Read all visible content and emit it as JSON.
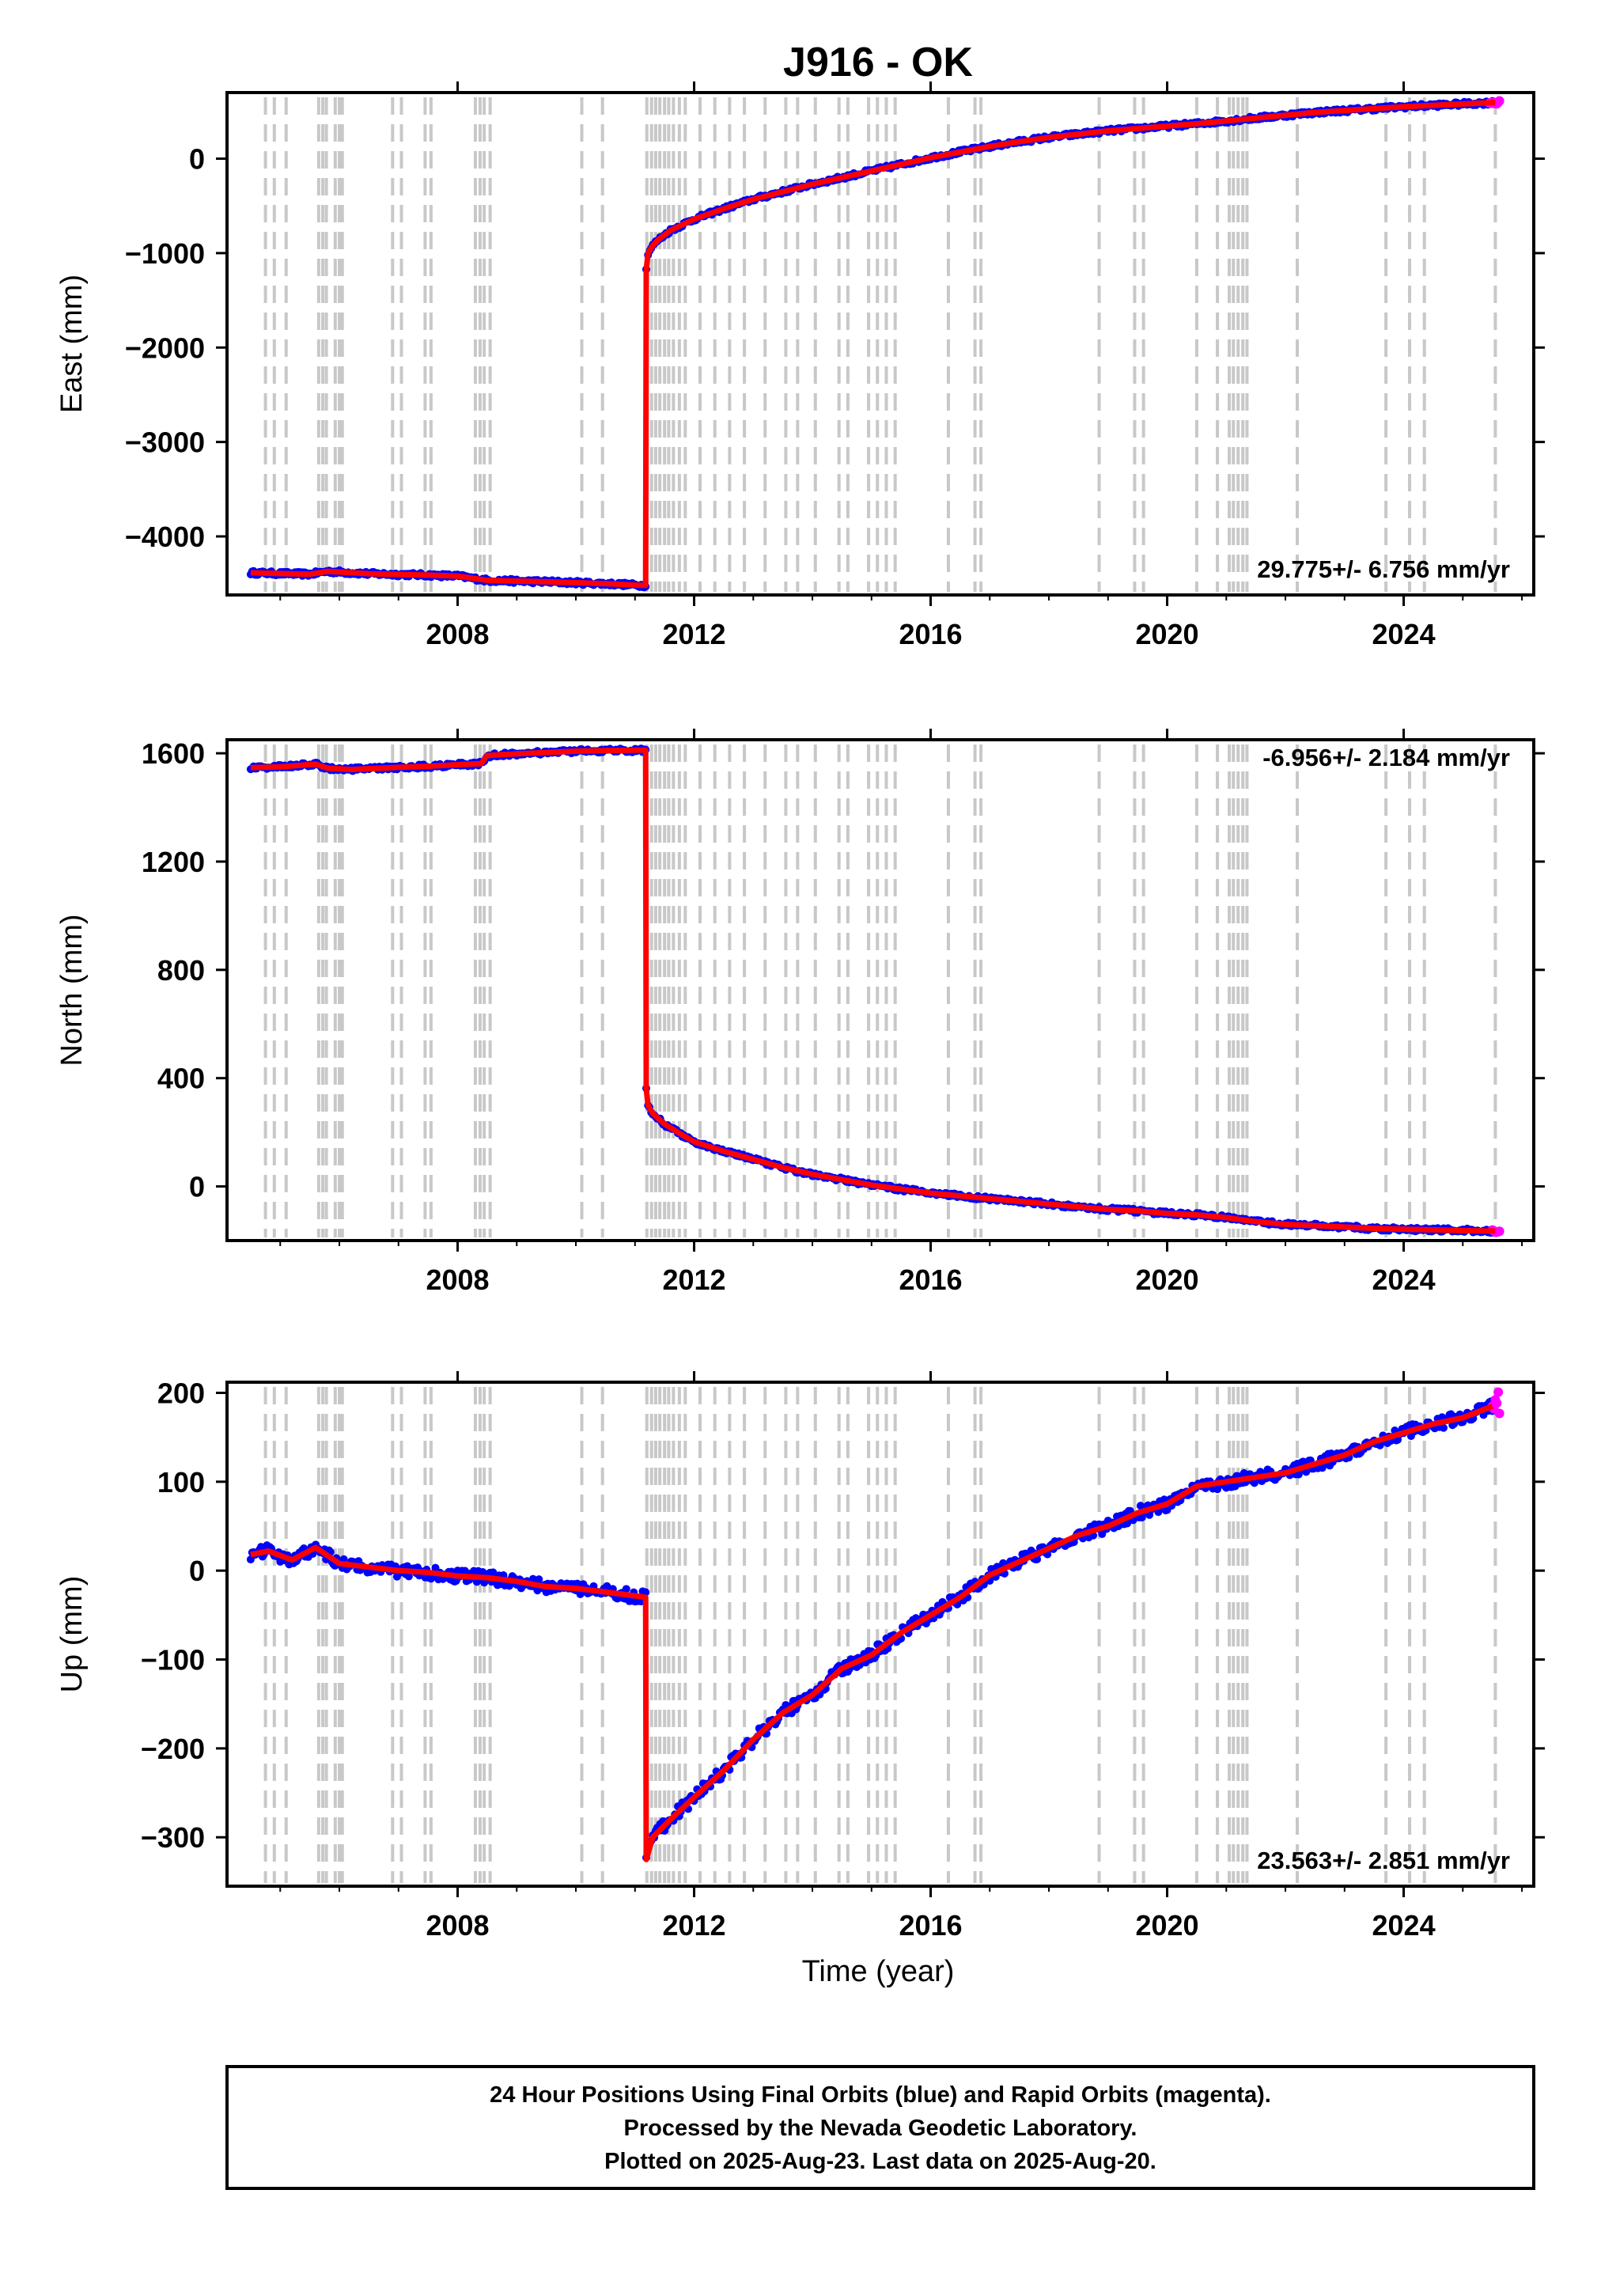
{
  "title": "J916 - OK",
  "xlabel": "Time (year)",
  "footer": [
    "24 Hour Positions Using Final Orbits (blue) and Rapid Orbits (magenta).",
    "Processed by the Nevada Geodetic Laboratory.",
    "Plotted on 2025-Aug-23. Last data on 2025-Aug-20."
  ],
  "colors": {
    "final": "#0000ff",
    "rapid": "#ff00ff",
    "model": "#ff0000",
    "event_lines": "#c8c8c8",
    "frame": "#000000"
  },
  "chart_data": [
    {
      "type": "scatter",
      "ylabel": "East (mm)",
      "rate_label": "29.775+/- 6.756 mm/yr",
      "xlim": [
        2004.1,
        2026.2
      ],
      "ylim": [
        -4620,
        700
      ],
      "xticks": [
        2008,
        2012,
        2016,
        2020,
        2024
      ],
      "yticks": [
        0,
        -1000,
        -2000,
        -3000,
        -4000
      ],
      "yticklabels": [
        "0",
        "−1000",
        "−2000",
        "−3000",
        "−4000"
      ],
      "series": [
        {
          "role": "final",
          "points": [
            [
              2004.5,
              -4385
            ],
            [
              2005.5,
              -4400
            ],
            [
              2005.8,
              -4370
            ],
            [
              2006.5,
              -4395
            ],
            [
              2007.5,
              -4410
            ],
            [
              2008.0,
              -4420
            ],
            [
              2008.5,
              -4465
            ],
            [
              2009.5,
              -4480
            ],
            [
              2010.5,
              -4500
            ],
            [
              2011.18,
              -4520
            ],
            [
              2011.19,
              -1180
            ],
            [
              2011.22,
              -1000
            ],
            [
              2011.3,
              -920
            ],
            [
              2011.4,
              -855
            ],
            [
              2011.6,
              -760
            ],
            [
              2011.8,
              -700
            ],
            [
              2012.0,
              -640
            ],
            [
              2012.5,
              -530
            ],
            [
              2013.0,
              -430
            ],
            [
              2013.5,
              -350
            ],
            [
              2014.0,
              -270
            ],
            [
              2014.5,
              -200
            ],
            [
              2015.0,
              -130
            ],
            [
              2015.5,
              -60
            ],
            [
              2016.0,
              10
            ],
            [
              2016.5,
              70
            ],
            [
              2017.0,
              130
            ],
            [
              2017.5,
              180
            ],
            [
              2018.0,
              225
            ],
            [
              2018.5,
              260
            ],
            [
              2019.0,
              295
            ],
            [
              2019.5,
              320
            ],
            [
              2020.0,
              345
            ],
            [
              2020.5,
              370
            ],
            [
              2021.0,
              400
            ],
            [
              2021.5,
              430
            ],
            [
              2022.0,
              460
            ],
            [
              2022.5,
              490
            ],
            [
              2023.0,
              510
            ],
            [
              2023.5,
              530
            ],
            [
              2024.0,
              550
            ],
            [
              2024.5,
              565
            ],
            [
              2025.0,
              580
            ],
            [
              2025.55,
              595
            ]
          ]
        },
        {
          "role": "rapid",
          "points": [
            [
              2025.45,
              590
            ],
            [
              2025.55,
              595
            ],
            [
              2025.62,
              600
            ]
          ]
        }
      ]
    },
    {
      "type": "scatter",
      "ylabel": "North (mm)",
      "rate_label": "-6.956+/- 2.184 mm/yr",
      "xlim": [
        2004.1,
        2026.2
      ],
      "ylim": [
        -200,
        1650
      ],
      "xticks": [
        2008,
        2012,
        2016,
        2020,
        2024
      ],
      "yticks": [
        1600,
        1200,
        800,
        400,
        0
      ],
      "yticklabels": [
        "1600",
        "1200",
        "800",
        "400",
        "0"
      ],
      "series": [
        {
          "role": "final",
          "points": [
            [
              2004.5,
              1547
            ],
            [
              2005.0,
              1550
            ],
            [
              2005.6,
              1560
            ],
            [
              2005.8,
              1545
            ],
            [
              2006.2,
              1540
            ],
            [
              2007.0,
              1548
            ],
            [
              2007.5,
              1552
            ],
            [
              2008.0,
              1558
            ],
            [
              2008.4,
              1562
            ],
            [
              2008.5,
              1592
            ],
            [
              2009.0,
              1598
            ],
            [
              2009.5,
              1603
            ],
            [
              2010.0,
              1608
            ],
            [
              2010.5,
              1610
            ],
            [
              2011.18,
              1612
            ],
            [
              2011.19,
              360
            ],
            [
              2011.22,
              300
            ],
            [
              2011.3,
              270
            ],
            [
              2011.5,
              230
            ],
            [
              2011.8,
              190
            ],
            [
              2012.0,
              165
            ],
            [
              2012.5,
              130
            ],
            [
              2013.0,
              100
            ],
            [
              2013.5,
              70
            ],
            [
              2014.0,
              45
            ],
            [
              2014.5,
              25
            ],
            [
              2015.0,
              5
            ],
            [
              2015.5,
              -10
            ],
            [
              2016.0,
              -25
            ],
            [
              2016.5,
              -35
            ],
            [
              2017.0,
              -45
            ],
            [
              2017.5,
              -55
            ],
            [
              2018.0,
              -65
            ],
            [
              2018.5,
              -75
            ],
            [
              2019.0,
              -85
            ],
            [
              2019.5,
              -90
            ],
            [
              2020.0,
              -100
            ],
            [
              2020.5,
              -105
            ],
            [
              2021.0,
              -115
            ],
            [
              2021.5,
              -130
            ],
            [
              2022.0,
              -140
            ],
            [
              2022.5,
              -145
            ],
            [
              2023.0,
              -150
            ],
            [
              2023.5,
              -155
            ],
            [
              2024.0,
              -158
            ],
            [
              2024.5,
              -160
            ],
            [
              2025.0,
              -163
            ],
            [
              2025.55,
              -165
            ]
          ]
        },
        {
          "role": "rapid",
          "points": [
            [
              2025.5,
              -163
            ],
            [
              2025.62,
              -162
            ]
          ]
        }
      ]
    },
    {
      "type": "scatter",
      "ylabel": "Up (mm)",
      "rate_label": "23.563+/- 2.851 mm/yr",
      "xlim": [
        2004.1,
        2026.2
      ],
      "ylim": [
        -355,
        212
      ],
      "xticks": [
        2008,
        2012,
        2016,
        2020,
        2024
      ],
      "yticks": [
        200,
        100,
        0,
        -100,
        -200,
        -300
      ],
      "yticklabels": [
        "200",
        "100",
        "0",
        "−100",
        "−200",
        "−300"
      ],
      "series": [
        {
          "role": "final",
          "points": [
            [
              2004.5,
              18
            ],
            [
              2004.8,
              22
            ],
            [
              2005.2,
              12
            ],
            [
              2005.6,
              26
            ],
            [
              2006.0,
              8
            ],
            [
              2006.5,
              4
            ],
            [
              2007.0,
              0
            ],
            [
              2007.5,
              -2
            ],
            [
              2008.0,
              -6
            ],
            [
              2008.5,
              -8
            ],
            [
              2009.0,
              -12
            ],
            [
              2009.5,
              -18
            ],
            [
              2010.0,
              -20
            ],
            [
              2010.5,
              -24
            ],
            [
              2011.18,
              -30
            ],
            [
              2011.19,
              -325
            ],
            [
              2011.3,
              -300
            ],
            [
              2011.6,
              -280
            ],
            [
              2012.0,
              -255
            ],
            [
              2012.5,
              -225
            ],
            [
              2013.0,
              -190
            ],
            [
              2013.5,
              -160
            ],
            [
              2014.0,
              -140
            ],
            [
              2014.5,
              -110
            ],
            [
              2015.0,
              -95
            ],
            [
              2015.5,
              -70
            ],
            [
              2016.0,
              -50
            ],
            [
              2016.5,
              -30
            ],
            [
              2017.0,
              -5
            ],
            [
              2017.5,
              10
            ],
            [
              2018.0,
              25
            ],
            [
              2018.5,
              40
            ],
            [
              2019.0,
              50
            ],
            [
              2019.5,
              65
            ],
            [
              2020.0,
              75
            ],
            [
              2020.5,
              95
            ],
            [
              2021.0,
              100
            ],
            [
              2021.5,
              105
            ],
            [
              2022.0,
              110
            ],
            [
              2022.5,
              120
            ],
            [
              2023.0,
              130
            ],
            [
              2023.5,
              145
            ],
            [
              2024.0,
              155
            ],
            [
              2024.5,
              165
            ],
            [
              2025.0,
              172
            ],
            [
              2025.5,
              185
            ]
          ]
        },
        {
          "role": "rapid",
          "points": [
            [
              2025.5,
              180
            ],
            [
              2025.55,
              188
            ],
            [
              2025.6,
              195
            ],
            [
              2025.62,
              175
            ]
          ]
        }
      ]
    }
  ],
  "event_lines_x": [
    2004.75,
    2004.9,
    2005.1,
    2005.65,
    2005.72,
    2005.78,
    2005.93,
    2006.0,
    2006.05,
    2006.9,
    2007.05,
    2007.45,
    2007.55,
    2008.3,
    2008.38,
    2008.45,
    2008.55,
    2010.1,
    2010.45,
    2011.2,
    2011.28,
    2011.35,
    2011.42,
    2011.5,
    2011.57,
    2011.65,
    2011.75,
    2011.85,
    2012.1,
    2012.35,
    2012.6,
    2012.85,
    2013.2,
    2013.55,
    2013.75,
    2014.05,
    2014.45,
    2014.6,
    2014.95,
    2015.1,
    2015.25,
    2015.4,
    2016.3,
    2016.75,
    2016.85,
    2018.85,
    2019.45,
    2019.6,
    2020.5,
    2020.85,
    2021.05,
    2021.12,
    2021.2,
    2021.28,
    2021.35,
    2022.2,
    2023.7,
    2024.1,
    2024.35,
    2025.55
  ]
}
